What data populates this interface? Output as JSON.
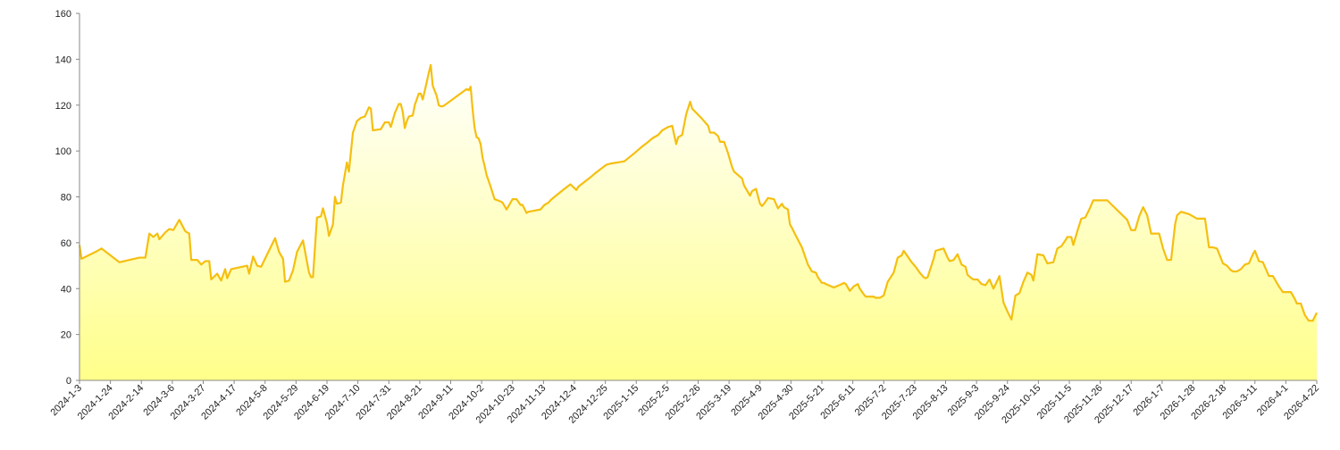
{
  "chart_data": {
    "type": "area",
    "title": "",
    "xlabel": "",
    "ylabel": "",
    "ylim": [
      0,
      160
    ],
    "yticks": [
      0,
      20,
      40,
      60,
      80,
      100,
      120,
      140,
      160
    ],
    "grid": false,
    "legend": "none",
    "line_color": "#f5bf10",
    "fill_top_color": "#ffffff",
    "fill_bottom_color": "#ffff8a",
    "x_tick_labels": [
      "2024-1-3",
      "2024-1-24",
      "2024-2-14",
      "2024-3-6",
      "2024-3-27",
      "2024-4-17",
      "2024-5-8",
      "2024-5-29",
      "2024-6-19",
      "2024-7-10",
      "2024-7-31",
      "2024-8-21",
      "2024-9-11",
      "2024-10-2",
      "2024-10-23",
      "2024-11-13",
      "2024-12-4",
      "2024-12-25",
      "2025-1-15",
      "2025-2-5",
      "2025-2-26",
      "2025-3-19",
      "2025-4-9",
      "2025-4-30",
      "2025-5-21",
      "2025-6-11",
      "2025-7-2",
      "2025-7-23",
      "2025-8-13",
      "2025-9-3",
      "2025-9-24",
      "2025-10-15",
      "2025-11-5",
      "2025-11-26",
      "2025-12-17",
      "2026-1-7",
      "2026-1-28",
      "2026-2-18",
      "2026-3-11",
      "2026-4-1",
      "2026-4-22"
    ],
    "series": [
      {
        "values": [
          [
            0,
            59
          ],
          [
            1,
            53
          ],
          [
            8,
            56
          ],
          [
            11,
            57.5
          ],
          [
            20,
            51.5
          ],
          [
            30,
            53.5
          ],
          [
            33,
            53.5
          ],
          [
            35,
            64
          ],
          [
            37,
            62.5
          ],
          [
            39,
            64
          ],
          [
            40,
            61.5
          ],
          [
            43,
            64.5
          ],
          [
            45,
            66
          ],
          [
            47,
            65.5
          ],
          [
            50,
            70
          ],
          [
            53,
            65
          ],
          [
            55,
            64
          ],
          [
            56,
            52.5
          ],
          [
            59,
            52.5
          ],
          [
            61,
            50.5
          ],
          [
            63,
            52
          ],
          [
            65,
            52
          ],
          [
            66,
            44
          ],
          [
            69,
            46.5
          ],
          [
            71,
            43.5
          ],
          [
            73,
            48.5
          ],
          [
            74,
            44.5
          ],
          [
            76,
            48.5
          ],
          [
            84,
            50
          ],
          [
            85,
            46.5
          ],
          [
            87,
            54
          ],
          [
            89,
            50
          ],
          [
            91,
            49.5
          ],
          [
            98,
            62
          ],
          [
            100,
            56
          ],
          [
            102,
            53
          ],
          [
            103,
            43
          ],
          [
            105,
            43.5
          ],
          [
            107,
            48
          ],
          [
            109,
            56
          ],
          [
            112,
            61
          ],
          [
            115,
            47
          ],
          [
            116,
            45
          ],
          [
            117,
            45
          ],
          [
            119,
            71
          ],
          [
            121,
            71.5
          ],
          [
            122,
            75
          ],
          [
            124,
            68.5
          ],
          [
            125,
            63
          ],
          [
            127,
            68
          ],
          [
            128,
            80
          ],
          [
            129,
            77
          ],
          [
            131,
            77.5
          ],
          [
            132,
            85
          ],
          [
            133,
            90
          ],
          [
            134,
            95
          ],
          [
            135,
            91
          ],
          [
            137,
            108
          ],
          [
            139,
            113
          ],
          [
            141,
            114.5
          ],
          [
            143,
            115
          ],
          [
            145,
            119
          ],
          [
            146,
            118.5
          ],
          [
            147,
            109
          ],
          [
            151,
            109.5
          ],
          [
            153,
            112.5
          ],
          [
            155,
            112.5
          ],
          [
            156,
            110.5
          ],
          [
            158,
            116.5
          ],
          [
            160,
            120.5
          ],
          [
            161,
            120.5
          ],
          [
            162,
            117
          ],
          [
            163,
            110
          ],
          [
            164,
            113
          ],
          [
            165,
            115
          ],
          [
            167,
            115.5
          ],
          [
            168,
            120
          ],
          [
            170,
            125
          ],
          [
            171,
            125
          ],
          [
            172,
            122.5
          ],
          [
            174,
            130
          ],
          [
            175,
            134
          ],
          [
            176,
            137.5
          ],
          [
            177,
            128.5
          ],
          [
            179,
            124
          ],
          [
            180,
            120
          ],
          [
            181,
            119.5
          ],
          [
            182,
            119.5
          ],
          [
            183,
            120
          ],
          [
            194,
            127
          ],
          [
            195,
            126.5
          ],
          [
            196,
            128
          ],
          [
            197,
            118
          ],
          [
            198,
            110
          ],
          [
            199,
            106
          ],
          [
            200,
            105.5
          ],
          [
            201,
            103
          ],
          [
            202,
            97
          ],
          [
            203,
            93.5
          ],
          [
            204,
            89.5
          ],
          [
            206,
            84.5
          ],
          [
            208,
            79
          ],
          [
            211,
            78
          ],
          [
            212,
            77.5
          ],
          [
            214,
            74.5
          ],
          [
            215,
            76
          ],
          [
            217,
            79
          ],
          [
            219,
            79
          ],
          [
            221,
            76.5
          ],
          [
            222,
            76.5
          ],
          [
            224,
            73
          ],
          [
            225,
            73.5
          ],
          [
            231,
            74.5
          ],
          [
            233,
            76.5
          ],
          [
            235,
            77.5
          ],
          [
            236,
            78.5
          ],
          [
            238,
            80
          ],
          [
            243,
            83.5
          ],
          [
            246,
            85.5
          ],
          [
            249,
            83
          ],
          [
            250,
            84.5
          ],
          [
            256,
            88.5
          ],
          [
            258,
            90
          ],
          [
            261,
            92
          ],
          [
            264,
            94
          ],
          [
            266,
            94.5
          ],
          [
            273,
            95.5
          ],
          [
            278,
            99
          ],
          [
            280,
            100.5
          ],
          [
            282,
            102
          ],
          [
            285,
            104
          ],
          [
            287,
            105.5
          ],
          [
            290,
            107
          ],
          [
            292,
            109
          ],
          [
            295,
            110.5
          ],
          [
            297,
            111
          ],
          [
            299,
            103
          ],
          [
            300,
            106
          ],
          [
            302,
            107
          ],
          [
            304,
            116
          ],
          [
            306,
            121.5
          ],
          [
            307,
            118.5
          ],
          [
            312,
            114
          ],
          [
            315,
            111
          ],
          [
            316,
            108
          ],
          [
            318,
            108
          ],
          [
            320,
            106.5
          ],
          [
            321,
            104
          ],
          [
            323,
            104
          ],
          [
            325,
            99
          ],
          [
            327,
            93
          ],
          [
            328,
            91
          ],
          [
            330,
            89.5
          ],
          [
            332,
            88
          ],
          [
            333,
            85
          ],
          [
            335,
            82
          ],
          [
            336,
            80.5
          ],
          [
            337,
            82.5
          ],
          [
            339,
            83.5
          ],
          [
            341,
            77
          ],
          [
            342,
            76
          ],
          [
            343,
            77
          ],
          [
            345,
            79.5
          ],
          [
            348,
            79
          ],
          [
            350,
            75
          ],
          [
            352,
            77
          ],
          [
            353,
            75.5
          ],
          [
            355,
            74.5
          ],
          [
            356,
            68
          ],
          [
            357,
            66.5
          ],
          [
            359,
            63
          ],
          [
            362,
            58
          ],
          [
            365,
            50.5
          ],
          [
            367,
            47.5
          ],
          [
            369,
            47
          ],
          [
            370,
            45
          ],
          [
            372,
            42.5
          ],
          [
            373,
            42.5
          ],
          [
            374,
            42
          ],
          [
            378,
            40.5
          ],
          [
            382,
            42
          ],
          [
            383,
            42.5
          ],
          [
            384,
            42
          ],
          [
            386,
            39
          ],
          [
            388,
            41
          ],
          [
            390,
            42
          ],
          [
            391,
            40
          ],
          [
            393,
            37.5
          ],
          [
            394,
            36.5
          ],
          [
            396,
            36.5
          ],
          [
            398,
            36.5
          ],
          [
            399,
            36
          ],
          [
            400,
            36
          ],
          [
            401,
            36
          ],
          [
            403,
            37
          ],
          [
            405,
            43
          ],
          [
            408,
            47
          ],
          [
            410,
            53.5
          ],
          [
            412,
            54.5
          ],
          [
            413,
            56.5
          ],
          [
            415,
            54
          ],
          [
            417,
            51.5
          ],
          [
            419,
            49.5
          ],
          [
            421,
            47
          ],
          [
            423,
            45
          ],
          [
            424,
            44.5
          ],
          [
            425,
            45
          ],
          [
            428,
            53
          ],
          [
            429,
            56.5
          ],
          [
            431,
            57
          ],
          [
            433,
            57.5
          ],
          [
            435,
            53.5
          ],
          [
            436,
            52
          ],
          [
            438,
            52.5
          ],
          [
            440,
            55
          ],
          [
            442,
            50.5
          ],
          [
            444,
            49.5
          ],
          [
            445,
            46
          ],
          [
            447,
            44.5
          ],
          [
            448,
            44
          ],
          [
            450,
            44
          ],
          [
            452,
            42
          ],
          [
            454,
            41.5
          ],
          [
            456,
            44
          ],
          [
            458,
            40
          ],
          [
            461,
            45.5
          ],
          [
            463,
            34
          ],
          [
            465,
            30
          ],
          [
            467,
            26.5
          ],
          [
            469,
            37
          ],
          [
            471,
            38
          ],
          [
            473,
            43
          ],
          [
            475,
            47
          ],
          [
            477,
            46
          ],
          [
            478,
            43.5
          ],
          [
            480,
            55
          ],
          [
            483,
            54.5
          ],
          [
            485,
            51
          ],
          [
            488,
            51.5
          ],
          [
            490,
            57.5
          ],
          [
            492,
            58.5
          ],
          [
            494,
            61
          ],
          [
            495,
            62.5
          ],
          [
            497,
            62.5
          ],
          [
            498,
            59
          ],
          [
            500,
            65
          ],
          [
            502,
            70.5
          ],
          [
            504,
            71
          ],
          [
            506,
            74.5
          ],
          [
            508,
            78.5
          ],
          [
            510,
            78.5
          ],
          [
            515,
            78.5
          ],
          [
            525,
            70
          ],
          [
            527,
            65.5
          ],
          [
            529,
            65.5
          ],
          [
            531,
            71.5
          ],
          [
            533,
            75.5
          ],
          [
            535,
            72
          ],
          [
            537,
            64
          ],
          [
            541,
            64
          ],
          [
            543,
            57.5
          ],
          [
            545,
            52.5
          ],
          [
            547,
            52.5
          ],
          [
            549,
            68
          ],
          [
            550,
            72
          ],
          [
            552,
            73.5
          ],
          [
            556,
            72.5
          ],
          [
            560,
            70.5
          ],
          [
            564,
            70.5
          ],
          [
            566,
            58
          ],
          [
            568,
            58
          ],
          [
            570,
            57.5
          ],
          [
            573,
            51
          ],
          [
            575,
            50
          ],
          [
            577,
            48
          ],
          [
            578,
            47.5
          ],
          [
            580,
            47.5
          ],
          [
            582,
            48.5
          ],
          [
            584,
            50.5
          ],
          [
            586,
            51
          ],
          [
            588,
            55
          ],
          [
            589,
            56.5
          ],
          [
            591,
            52
          ],
          [
            593,
            51.5
          ],
          [
            596,
            45.5
          ],
          [
            598,
            45.5
          ],
          [
            601,
            41
          ],
          [
            603,
            38.5
          ],
          [
            607,
            38.5
          ],
          [
            609,
            35.5
          ],
          [
            610,
            33.5
          ],
          [
            612,
            33.5
          ],
          [
            614,
            28.5
          ],
          [
            616,
            26
          ],
          [
            618,
            26
          ],
          [
            620,
            29.5
          ]
        ]
      }
    ]
  }
}
